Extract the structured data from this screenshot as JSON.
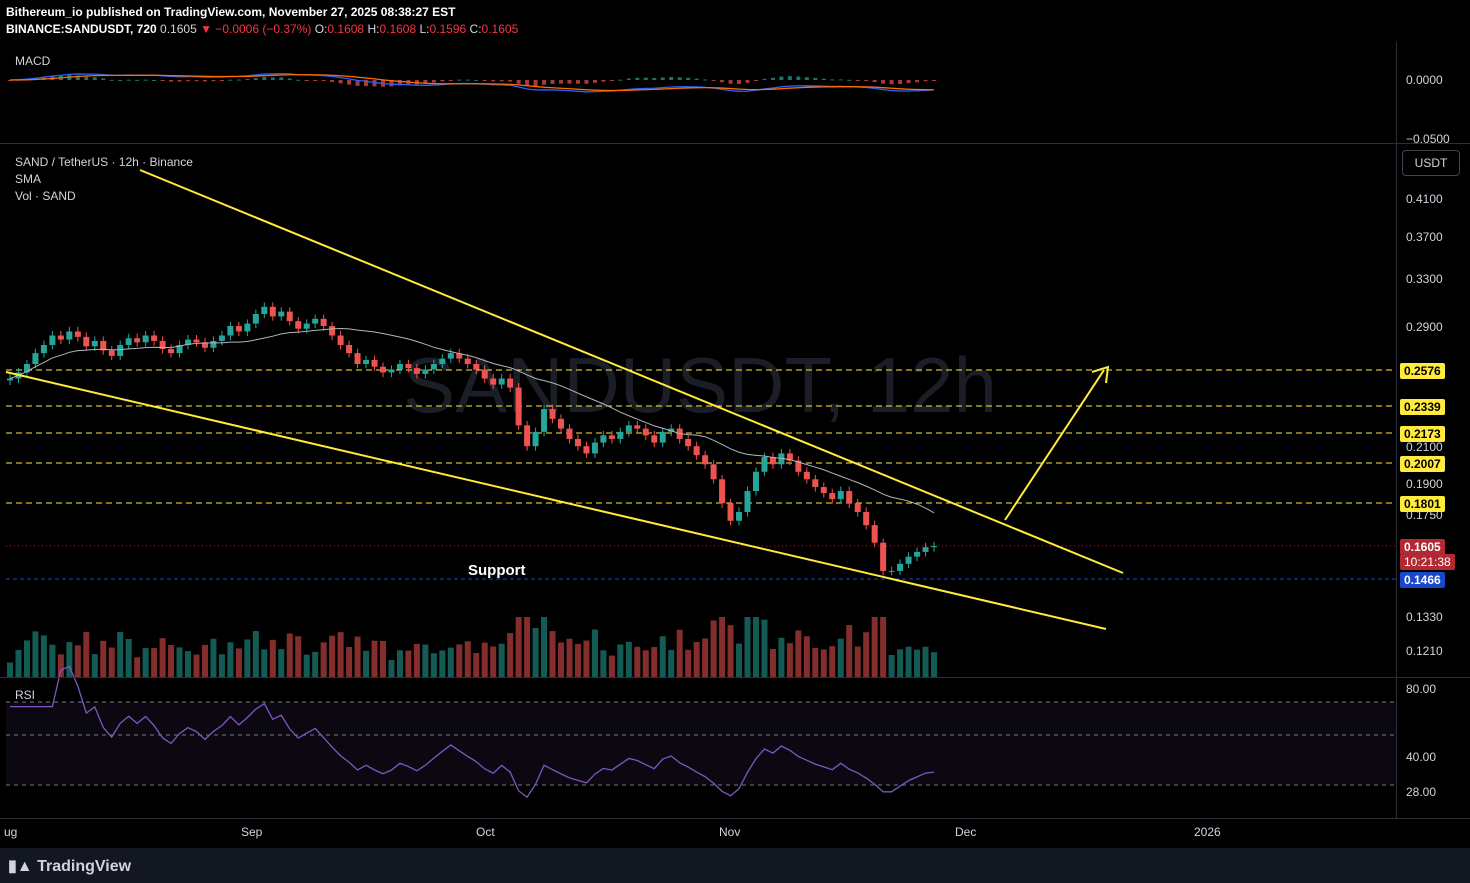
{
  "header": {
    "line1": "Bithereum_io published on TradingView.com, November 27, 2025 08:38:27 EST",
    "symbol": "BINANCE:SANDUSDT, 720",
    "price": "0.1605",
    "change": "▼ −0.0006 (−0.37%)",
    "o_label": "O:",
    "o": "0.1608",
    "h_label": "H:",
    "h": "0.1608",
    "l_label": "L:",
    "l": "0.1596",
    "c_label": "C:",
    "c": "0.1605"
  },
  "panes": {
    "macd_title": "MACD",
    "main_title": "SAND / TetherUS · 12h · Binance",
    "sma_title": "SMA",
    "vol_title": "Vol · SAND",
    "rsi_title": "RSI",
    "watermark": "SANDUSDT, 12h",
    "currency_button": "USDT"
  },
  "annotation": {
    "support": "Support"
  },
  "footer": {
    "logo": "TradingView"
  },
  "colors": {
    "up": "#26a69a",
    "down": "#ef5350",
    "trendline": "#ffeb3b",
    "sma": "#b2b5be",
    "macd": "#2962ff",
    "signal": "#ff6d00",
    "rsi": "#7e57c2"
  },
  "chart_data": {
    "type": "candlestick",
    "x_ticks": [
      "ug",
      "Sep",
      "Oct",
      "Nov",
      "Dec",
      "2026"
    ],
    "price_scale": [
      "0.4100",
      "0.3700",
      "0.3300",
      "0.2900",
      "0.2100",
      "0.1900",
      "0.1750",
      "0.1330",
      "0.1210"
    ],
    "levels": [
      {
        "value": "0.2576"
      },
      {
        "value": "0.2339"
      },
      {
        "value": "0.2173"
      },
      {
        "value": "0.2007"
      },
      {
        "value": "0.1801"
      }
    ],
    "last_price": "0.1605",
    "countdown": "10:21:38",
    "support_price": "0.1466",
    "macd_scale": [
      "0.0000",
      "−0.0500"
    ],
    "rsi_scale": [
      "80.00",
      "40.00",
      "28.00"
    ],
    "closes": [
      0.252,
      0.256,
      0.262,
      0.27,
      0.276,
      0.283,
      0.28,
      0.286,
      0.282,
      0.275,
      0.279,
      0.272,
      0.268,
      0.276,
      0.281,
      0.278,
      0.283,
      0.279,
      0.273,
      0.27,
      0.276,
      0.28,
      0.278,
      0.274,
      0.279,
      0.283,
      0.29,
      0.286,
      0.292,
      0.3,
      0.306,
      0.298,
      0.302,
      0.294,
      0.288,
      0.292,
      0.296,
      0.29,
      0.283,
      0.276,
      0.27,
      0.262,
      0.265,
      0.26,
      0.256,
      0.258,
      0.262,
      0.259,
      0.255,
      0.258,
      0.262,
      0.266,
      0.27,
      0.266,
      0.262,
      0.258,
      0.252,
      0.248,
      0.252,
      0.246,
      0.222,
      0.21,
      0.218,
      0.232,
      0.226,
      0.22,
      0.214,
      0.21,
      0.206,
      0.212,
      0.216,
      0.214,
      0.218,
      0.222,
      0.22,
      0.216,
      0.212,
      0.218,
      0.22,
      0.214,
      0.21,
      0.205,
      0.2,
      0.192,
      0.18,
      0.172,
      0.176,
      0.186,
      0.196,
      0.204,
      0.2,
      0.206,
      0.202,
      0.196,
      0.192,
      0.188,
      0.185,
      0.182,
      0.186,
      0.18,
      0.176,
      0.17,
      0.162,
      0.15,
      0.15,
      0.153,
      0.156,
      0.158,
      0.16,
      0.1605
    ]
  }
}
